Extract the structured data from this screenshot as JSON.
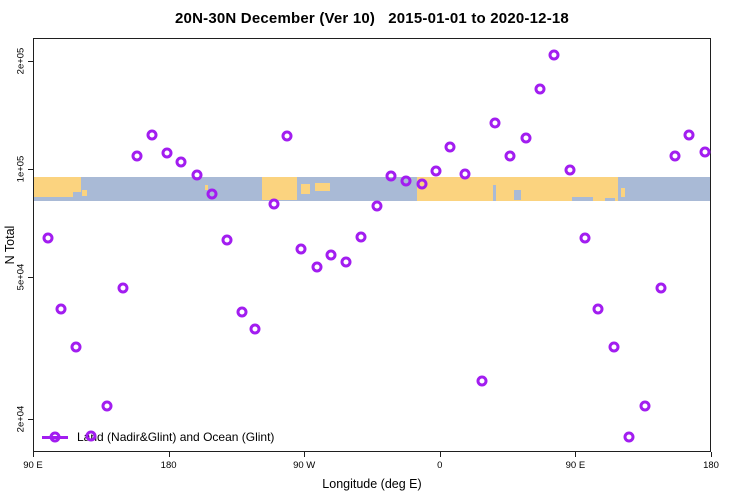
{
  "title": "20N-30N December (Ver 10)   2015-01-01 to 2020-12-18",
  "colors": {
    "point": "#a21df0",
    "land": "#fbd37f",
    "ocean": "#a9bad6",
    "axis": "#1f1f1f",
    "text": "#000000"
  },
  "chart_data": {
    "type": "scatter",
    "title": "20N-30N December (Ver 10)   2015-01-01 to 2020-12-18",
    "xlabel": "Longitude (deg E)",
    "ylabel": "N Total",
    "grid": false,
    "legend_position": "bottom-left-inside",
    "legend": {
      "label": "Land (Nadir&Glint) and Ocean (Glint)",
      "marker": "open-circle-on-line",
      "color": "#a21df0"
    },
    "x_axis": {
      "min": 90,
      "max": 540,
      "note": "longitude wraps eastward: 90E,180,90W(=270),0(=360),90E(=450),180(=540)",
      "ticks": [
        {
          "value": 90,
          "label": "90 E"
        },
        {
          "value": 180,
          "label": "180"
        },
        {
          "value": 270,
          "label": "90 W"
        },
        {
          "value": 360,
          "label": "0"
        },
        {
          "value": 450,
          "label": "90 E"
        },
        {
          "value": 540,
          "label": "180"
        }
      ]
    },
    "y_axis": {
      "scale": "log10",
      "log_min": 4.209,
      "log_max": 5.365,
      "ticks": [
        {
          "value": 20000,
          "label": "2e+04"
        },
        {
          "value": 50000,
          "label": "5e+04"
        },
        {
          "value": 100000,
          "label": "1e+05"
        },
        {
          "value": 200000,
          "label": "2e+05"
        }
      ]
    },
    "series": [
      {
        "name": "Land (Nadir&Glint) and Ocean (Glint)",
        "marker": "open-circle",
        "color": "#a21df0",
        "points": [
          [
            99.5,
            64500
          ],
          [
            108,
            40900
          ],
          [
            118,
            32000
          ],
          [
            128,
            18000
          ],
          [
            138.5,
            21900
          ],
          [
            149,
            46800
          ],
          [
            158.5,
            109000
          ],
          [
            168,
            125000
          ],
          [
            178,
            111000
          ],
          [
            187.5,
            105000
          ],
          [
            198,
            96700
          ],
          [
            208,
            85600
          ],
          [
            218,
            63700
          ],
          [
            228,
            40100
          ],
          [
            236.5,
            35900
          ],
          [
            249.5,
            80300
          ],
          [
            258,
            124000
          ],
          [
            267,
            60100
          ],
          [
            278,
            53500
          ],
          [
            287,
            57800
          ],
          [
            297,
            55300
          ],
          [
            307,
            64900
          ],
          [
            317.5,
            79200
          ],
          [
            327,
            96100
          ],
          [
            337,
            93100
          ],
          [
            347.5,
            91300
          ],
          [
            357,
            99200
          ],
          [
            366,
            116000
          ],
          [
            376,
            97300
          ],
          [
            387.5,
            25700
          ],
          [
            396,
            135000
          ],
          [
            406,
            109000
          ],
          [
            416.5,
            123000
          ],
          [
            426,
            168000
          ],
          [
            435,
            209000
          ],
          [
            445.5,
            99900
          ],
          [
            455.5,
            64500
          ],
          [
            464.5,
            40900
          ],
          [
            475,
            32000
          ],
          [
            485,
            17900
          ],
          [
            495.5,
            21900
          ],
          [
            506,
            46800
          ],
          [
            515.5,
            109000
          ],
          [
            525,
            125000
          ],
          [
            535.5,
            112000
          ]
        ]
      }
    ],
    "map_band": {
      "description": "20N-30N world-map strip drawn across the plot",
      "top_n": 95500,
      "bottom_n": 81800,
      "ocean_color": "#a9bad6",
      "land_color": "#fbd37f",
      "land_segments": [
        {
          "name": "south-asia",
          "from": 90,
          "to": 121.5,
          "top": 0,
          "bottom": 0.62
        },
        {
          "name": "india-china",
          "from": 90,
          "to": 116,
          "top": 0,
          "bottom": 0.85
        },
        {
          "name": "se-asia-speck",
          "from": 122,
          "to": 125,
          "top": 0.55,
          "bottom": 0.8
        },
        {
          "name": "hawaii",
          "from": 203.5,
          "to": 205.5,
          "top": 0.35,
          "bottom": 0.55
        },
        {
          "name": "mexico",
          "from": 242,
          "to": 265,
          "top": 0,
          "bottom": 0.95
        },
        {
          "name": "caribbean-west",
          "from": 268,
          "to": 274,
          "top": 0.3,
          "bottom": 0.7
        },
        {
          "name": "caribbean-cuba",
          "from": 277,
          "to": 287,
          "top": 0.25,
          "bottom": 0.6
        },
        {
          "name": "africa-asia",
          "from": 345,
          "to": 479,
          "top": 0,
          "bottom": 1
        },
        {
          "name": "taiwan",
          "from": 480.5,
          "to": 483.5,
          "top": 0.45,
          "bottom": 0.85
        }
      ],
      "ocean_cutouts": [
        {
          "name": "red-sea",
          "from": 395.5,
          "to": 397.5,
          "top": 0.35,
          "bottom": 1
        },
        {
          "name": "persian-gulf",
          "from": 409.5,
          "to": 414.5,
          "top": 0.55,
          "bottom": 0.95
        },
        {
          "name": "bay-of-bengal",
          "from": 448,
          "to": 462,
          "top": 0.85,
          "bottom": 1
        },
        {
          "name": "south-china-sea",
          "from": 470,
          "to": 477,
          "top": 0.88,
          "bottom": 1
        }
      ]
    }
  }
}
